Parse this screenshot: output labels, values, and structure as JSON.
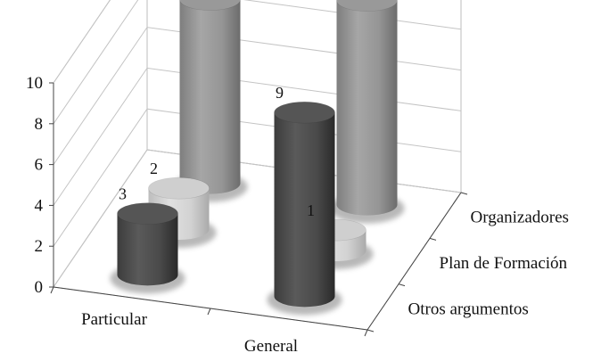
{
  "chart_data": {
    "type": "bar",
    "subtype": "3d-cylinder",
    "title": "",
    "xlabel": "",
    "ylabel": "",
    "ylim": [
      0,
      10
    ],
    "yticks": [
      "0",
      "2",
      "4",
      "6",
      "8",
      "10"
    ],
    "grid": true,
    "categories": [
      "Particular",
      "General"
    ],
    "series": [
      {
        "name": "Otros argumentos",
        "values": [
          3,
          9
        ],
        "color": "#555555"
      },
      {
        "name": "Plan de Formación",
        "values": [
          2,
          1
        ],
        "color": "#cfcfcf"
      },
      {
        "name": "Organizadores",
        "values": [
          9,
          10
        ],
        "color": "#999999"
      }
    ]
  }
}
